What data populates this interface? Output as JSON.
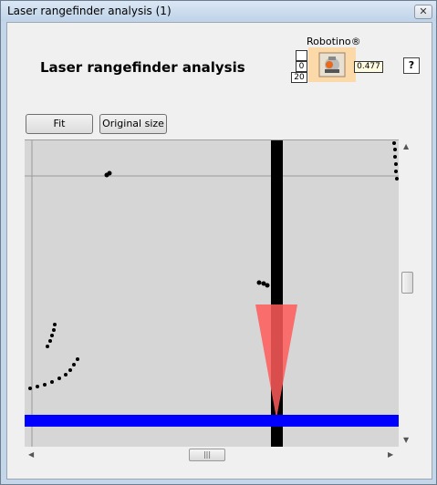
{
  "window": {
    "title": "Laser rangefinder analysis (1)",
    "close_glyph": "✕"
  },
  "header": {
    "title": "Laser rangefinder analysis",
    "robot_label": "Robotino®",
    "ctl_top": "",
    "ctl_mid": "0",
    "ctl_bottom": "20",
    "speed_value": "0.477",
    "help_glyph": "?"
  },
  "toolbar": {
    "fit_label": "Fit",
    "original_size_label": "Original size"
  },
  "scroll": {
    "up": "▲",
    "down": "▼",
    "left": "◀",
    "right": "▶",
    "grip": "|||"
  },
  "colors": {
    "plot_bg": "#d6d6d6",
    "beam": "#ff5a5a",
    "floor_line": "#0000ff",
    "obstacle": "#000000"
  }
}
